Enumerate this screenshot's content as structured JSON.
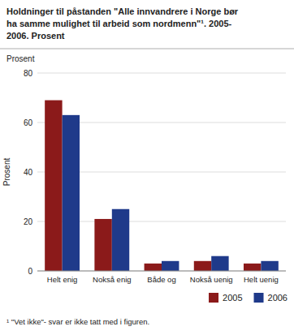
{
  "chart_data": {
    "type": "bar",
    "title": "Holdninger til påstanden \"Alle innvandrere i Norge bør\nha samme mulighet til arbeid som nordmenn\"¹. 2005-\n2006. Prosent",
    "ylabel": "Prosent",
    "footnote": "¹ \"Vet ikke\"- svar er ikke tatt med i figuren.",
    "categories": [
      "Helt enig",
      "Nokså enig",
      "Både og",
      "Nokså uenig",
      "Helt uenig"
    ],
    "series": [
      {
        "name": "2005",
        "color": "#8B1A1A",
        "values": [
          69,
          21,
          3,
          4,
          3
        ]
      },
      {
        "name": "2006",
        "color": "#1F3A8A",
        "values": [
          63,
          25,
          4,
          6,
          4
        ]
      }
    ],
    "ylim": [
      0,
      80
    ],
    "yticks": [
      0,
      20,
      40,
      60,
      80
    ],
    "grid": true,
    "legend": "bottom-right"
  }
}
